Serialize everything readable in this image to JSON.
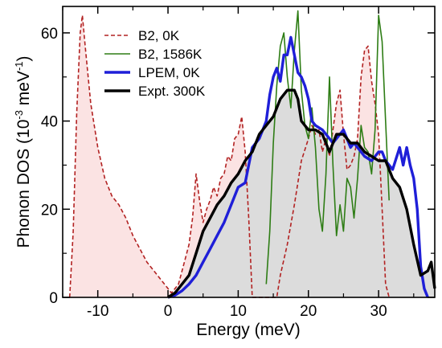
{
  "chart_data": {
    "type": "line",
    "xlabel": "Energy  (meV)",
    "ylabel": {
      "main": "Phonon DOS  (10",
      "sup1": "-3",
      "mid": " meV",
      "sup2": "-1",
      "end": ")"
    },
    "xlim": [
      -15,
      38
    ],
    "ylim": [
      0,
      66
    ],
    "xticks": [
      -10,
      0,
      10,
      20,
      30
    ],
    "yticks": [
      0,
      20,
      40,
      60
    ],
    "legend_position": "top-left",
    "grid": false,
    "series": [
      {
        "name": "B2, 0K",
        "color": "#b22222",
        "style": "dashed",
        "fill": "#fbe3e3",
        "points": [
          [
            -14,
            0
          ],
          [
            -13.5,
            15
          ],
          [
            -13,
            42
          ],
          [
            -12.5,
            60
          ],
          [
            -12.2,
            64
          ],
          [
            -11.8,
            57
          ],
          [
            -11,
            44
          ],
          [
            -10,
            34
          ],
          [
            -9,
            27
          ],
          [
            -8,
            23
          ],
          [
            -7,
            21
          ],
          [
            -6,
            18
          ],
          [
            -5,
            14
          ],
          [
            -4,
            11
          ],
          [
            -3,
            8
          ],
          [
            -2,
            6
          ],
          [
            -1,
            4
          ],
          [
            0,
            2
          ],
          [
            0.5,
            1
          ],
          [
            1,
            2
          ],
          [
            1.5,
            3
          ],
          [
            2,
            6
          ],
          [
            2.5,
            9
          ],
          [
            3,
            12
          ],
          [
            3.5,
            18
          ],
          [
            4,
            28
          ],
          [
            4.5,
            22
          ],
          [
            5,
            17
          ],
          [
            5.5,
            20
          ],
          [
            6,
            22
          ],
          [
            6.5,
            25
          ],
          [
            7,
            23
          ],
          [
            7.5,
            27
          ],
          [
            8,
            28
          ],
          [
            8.5,
            32
          ],
          [
            9,
            31
          ],
          [
            9.5,
            36
          ],
          [
            10,
            37
          ],
          [
            10.5,
            41
          ],
          [
            11,
            33
          ],
          [
            11.5,
            18
          ],
          [
            12,
            0
          ],
          [
            15.5,
            0
          ],
          [
            16,
            5
          ],
          [
            17,
            12
          ],
          [
            18,
            21
          ],
          [
            19,
            31
          ],
          [
            20,
            36
          ],
          [
            20.5,
            39
          ],
          [
            21,
            37
          ],
          [
            21.5,
            38
          ],
          [
            22,
            33
          ],
          [
            22.5,
            36
          ],
          [
            23,
            32
          ],
          [
            23.5,
            38
          ],
          [
            24,
            44
          ],
          [
            24.5,
            47
          ],
          [
            25,
            37
          ],
          [
            25.5,
            29
          ],
          [
            26,
            30
          ],
          [
            26.5,
            32
          ],
          [
            27,
            36
          ],
          [
            27.5,
            50
          ],
          [
            28,
            56
          ],
          [
            28.5,
            57
          ],
          [
            29,
            49
          ],
          [
            29.5,
            44
          ],
          [
            30,
            37
          ],
          [
            30.5,
            20
          ],
          [
            31,
            3
          ],
          [
            31.5,
            0
          ]
        ]
      },
      {
        "name": "B2, 1586K",
        "color": "#2e7d15",
        "style": "solid",
        "points": [
          [
            14,
            3
          ],
          [
            14.5,
            15
          ],
          [
            15,
            35
          ],
          [
            15.5,
            48
          ],
          [
            16,
            57
          ],
          [
            16.5,
            60
          ],
          [
            17,
            50
          ],
          [
            17.5,
            43
          ],
          [
            18,
            56
          ],
          [
            18.5,
            65
          ],
          [
            19,
            47
          ],
          [
            19.5,
            39
          ],
          [
            20,
            36
          ],
          [
            20.5,
            43
          ],
          [
            21,
            34
          ],
          [
            21.5,
            20
          ],
          [
            22,
            15
          ],
          [
            22.5,
            28
          ],
          [
            23,
            50
          ],
          [
            23.5,
            30
          ],
          [
            24,
            14
          ],
          [
            24.5,
            21
          ],
          [
            25,
            15
          ],
          [
            25.5,
            27
          ],
          [
            26,
            25
          ],
          [
            26.5,
            18
          ],
          [
            27,
            27
          ],
          [
            27.5,
            39
          ],
          [
            28,
            34
          ],
          [
            28.5,
            33
          ],
          [
            29,
            28
          ],
          [
            29.5,
            38
          ],
          [
            30,
            64
          ],
          [
            30.5,
            58
          ],
          [
            31,
            40
          ],
          [
            31.5,
            22
          ]
        ]
      },
      {
        "name": "LPEM, 0K",
        "color": "#1f1fd8",
        "style": "solid",
        "thick": true,
        "points": [
          [
            0,
            0
          ],
          [
            1,
            0.5
          ],
          [
            2,
            1.5
          ],
          [
            3,
            3
          ],
          [
            4,
            5
          ],
          [
            5,
            8
          ],
          [
            6,
            11
          ],
          [
            7,
            14
          ],
          [
            8,
            17
          ],
          [
            9,
            21
          ],
          [
            10,
            25
          ],
          [
            11,
            26
          ],
          [
            12,
            34
          ],
          [
            13,
            36
          ],
          [
            14,
            40
          ],
          [
            14.5,
            46
          ],
          [
            15,
            50
          ],
          [
            15.5,
            52
          ],
          [
            16,
            49
          ],
          [
            16.5,
            55
          ],
          [
            17,
            55
          ],
          [
            17.5,
            59
          ],
          [
            18,
            55
          ],
          [
            18.5,
            51
          ],
          [
            19,
            50
          ],
          [
            19.5,
            48
          ],
          [
            20,
            45
          ],
          [
            20.5,
            40
          ],
          [
            21,
            39
          ],
          [
            22,
            38
          ],
          [
            22.5,
            37
          ],
          [
            23,
            36
          ],
          [
            23.5,
            35
          ],
          [
            24,
            36
          ],
          [
            25,
            38
          ],
          [
            26,
            34
          ],
          [
            26.5,
            35
          ],
          [
            27,
            34
          ],
          [
            28,
            32
          ],
          [
            29,
            31
          ],
          [
            30,
            33
          ],
          [
            30.5,
            33
          ],
          [
            31,
            31
          ],
          [
            32,
            29
          ],
          [
            33,
            34
          ],
          [
            33.5,
            30
          ],
          [
            34,
            34
          ],
          [
            34.5,
            30
          ],
          [
            35,
            27
          ],
          [
            35.5,
            20
          ],
          [
            36,
            7
          ],
          [
            36.5,
            2
          ],
          [
            37,
            0
          ]
        ]
      },
      {
        "name": "Expt. 300K",
        "color": "#000000",
        "style": "solid",
        "thick": true,
        "fill": "#dcdcdc",
        "points": [
          [
            0,
            0
          ],
          [
            1,
            1
          ],
          [
            2,
            3
          ],
          [
            3,
            5
          ],
          [
            4,
            10
          ],
          [
            5,
            15
          ],
          [
            6,
            18
          ],
          [
            7,
            21
          ],
          [
            8,
            23
          ],
          [
            9,
            26
          ],
          [
            10,
            28
          ],
          [
            11,
            31
          ],
          [
            12,
            33
          ],
          [
            13,
            37
          ],
          [
            14,
            39
          ],
          [
            15,
            41
          ],
          [
            16,
            45
          ],
          [
            17,
            47
          ],
          [
            18,
            47
          ],
          [
            18.5,
            45
          ],
          [
            19,
            40
          ],
          [
            20,
            38
          ],
          [
            21,
            38
          ],
          [
            22,
            37
          ],
          [
            23,
            33
          ],
          [
            24,
            37
          ],
          [
            25,
            37
          ],
          [
            26,
            35
          ],
          [
            27,
            35
          ],
          [
            28,
            33
          ],
          [
            29,
            32
          ],
          [
            30,
            31
          ],
          [
            31,
            31
          ],
          [
            32,
            27
          ],
          [
            33,
            25
          ],
          [
            34,
            20
          ],
          [
            35,
            12
          ],
          [
            36,
            5
          ],
          [
            37,
            6
          ],
          [
            37.5,
            8
          ],
          [
            38,
            2
          ]
        ]
      }
    ]
  }
}
